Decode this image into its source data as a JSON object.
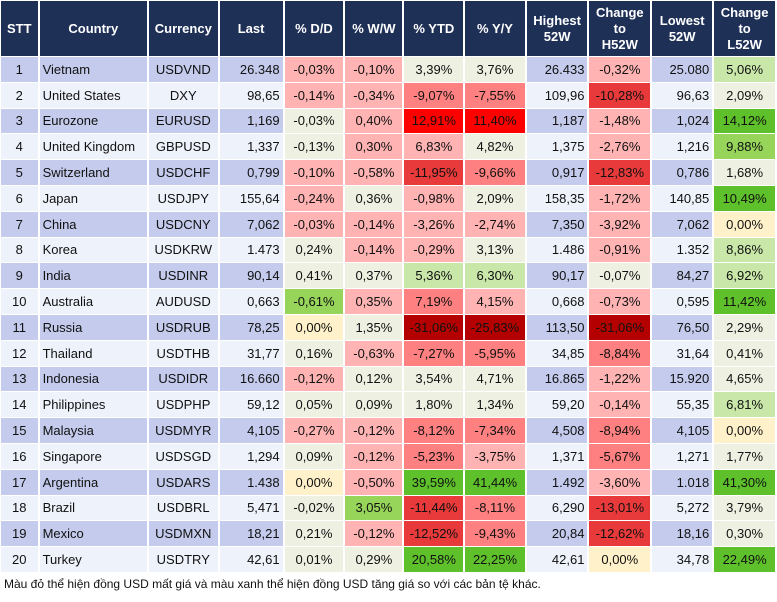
{
  "headers": [
    "STT",
    "Country",
    "Currency",
    "Last",
    "% D/D",
    "% W/W",
    "% YTD",
    "% Y/Y",
    "Highest 52W",
    "Change to H52W",
    "Lowest 52W",
    "Change to L52W"
  ],
  "colors": {
    "header": "#1f3057",
    "odd_row": "#c4cbec",
    "even_row": "#eef2fb",
    "neutral": "#eef0e2",
    "zero": "#fff1c9",
    "red_light": "#ffb3b3",
    "red_mid": "#ff8080",
    "red_strong": "#e83a3a",
    "red_bright": "#ff0000",
    "red_dark": "#b40000",
    "green_light": "#c9e7a9",
    "green_mid": "#96d45a",
    "green_strong": "#5ec02a"
  },
  "rows": [
    {
      "stt": "1",
      "country": "Vietnam",
      "currency": "USDVND",
      "last": "26.348",
      "dd": [
        "-0,03%",
        "r1"
      ],
      "ww": [
        "-0,10%",
        "r1"
      ],
      "ytd": [
        "3,39%",
        "n"
      ],
      "yy": [
        "3,76%",
        "n"
      ],
      "high": "26.433",
      "chh": [
        "-0,32%",
        "r1"
      ],
      "low": "25.080",
      "chl": [
        "5,06%",
        "g1"
      ]
    },
    {
      "stt": "2",
      "country": "United States",
      "currency": "DXY",
      "last": "98,65",
      "dd": [
        "-0,14%",
        "r1"
      ],
      "ww": [
        "-0,34%",
        "r1"
      ],
      "ytd": [
        "-9,07%",
        "r2"
      ],
      "yy": [
        "-7,55%",
        "r2"
      ],
      "high": "109,96",
      "chh": [
        "-10,28%",
        "r3"
      ],
      "low": "96,63",
      "chl": [
        "2,09%",
        "n"
      ]
    },
    {
      "stt": "3",
      "country": "Eurozone",
      "currency": "EURUSD",
      "last": "1,169",
      "dd": [
        "-0,03%",
        "n"
      ],
      "ww": [
        "0,40%",
        "r1"
      ],
      "ytd": [
        "12,91%",
        "r4"
      ],
      "yy": [
        "11,40%",
        "r4"
      ],
      "high": "1,187",
      "chh": [
        "-1,48%",
        "r1"
      ],
      "low": "1,024",
      "chl": [
        "14,12%",
        "g3"
      ]
    },
    {
      "stt": "4",
      "country": "United Kingdom",
      "currency": "GBPUSD",
      "last": "1,337",
      "dd": [
        "-0,13%",
        "n"
      ],
      "ww": [
        "0,30%",
        "r1"
      ],
      "ytd": [
        "6,83%",
        "r1"
      ],
      "yy": [
        "4,82%",
        "n"
      ],
      "high": "1,375",
      "chh": [
        "-2,76%",
        "r1"
      ],
      "low": "1,216",
      "chl": [
        "9,88%",
        "g2"
      ]
    },
    {
      "stt": "5",
      "country": "Switzerland",
      "currency": "USDCHF",
      "last": "0,799",
      "dd": [
        "-0,10%",
        "r1"
      ],
      "ww": [
        "-0,58%",
        "r1"
      ],
      "ytd": [
        "-11,95%",
        "r3"
      ],
      "yy": [
        "-9,66%",
        "r2"
      ],
      "high": "0,917",
      "chh": [
        "-12,83%",
        "r3"
      ],
      "low": "0,786",
      "chl": [
        "1,68%",
        "n"
      ]
    },
    {
      "stt": "6",
      "country": "Japan",
      "currency": "USDJPY",
      "last": "155,64",
      "dd": [
        "-0,24%",
        "r1"
      ],
      "ww": [
        "0,36%",
        "n"
      ],
      "ytd": [
        "-0,98%",
        "r1"
      ],
      "yy": [
        "2,09%",
        "n"
      ],
      "high": "158,35",
      "chh": [
        "-1,72%",
        "r1"
      ],
      "low": "140,85",
      "chl": [
        "10,49%",
        "g3"
      ]
    },
    {
      "stt": "7",
      "country": "China",
      "currency": "USDCNY",
      "last": "7,062",
      "dd": [
        "-0,03%",
        "r1"
      ],
      "ww": [
        "-0,14%",
        "r1"
      ],
      "ytd": [
        "-3,26%",
        "r1"
      ],
      "yy": [
        "-2,74%",
        "r1"
      ],
      "high": "7,350",
      "chh": [
        "-3,92%",
        "r1"
      ],
      "low": "7,062",
      "chl": [
        "0,00%",
        "z"
      ]
    },
    {
      "stt": "8",
      "country": "Korea",
      "currency": "USDKRW",
      "last": "1.473",
      "dd": [
        "0,24%",
        "n"
      ],
      "ww": [
        "-0,14%",
        "r1"
      ],
      "ytd": [
        "-0,29%",
        "r1"
      ],
      "yy": [
        "3,13%",
        "n"
      ],
      "high": "1.486",
      "chh": [
        "-0,91%",
        "r1"
      ],
      "low": "1.352",
      "chl": [
        "8,86%",
        "g1"
      ]
    },
    {
      "stt": "9",
      "country": "India",
      "currency": "USDINR",
      "last": "90,14",
      "dd": [
        "0,41%",
        "n"
      ],
      "ww": [
        "0,37%",
        "n"
      ],
      "ytd": [
        "5,36%",
        "g1"
      ],
      "yy": [
        "6,30%",
        "g1"
      ],
      "high": "90,17",
      "chh": [
        "-0,07%",
        "n"
      ],
      "low": "84,27",
      "chl": [
        "6,92%",
        "g1"
      ]
    },
    {
      "stt": "10",
      "country": "Australia",
      "currency": "AUDUSD",
      "last": "0,663",
      "dd": [
        "-0,61%",
        "g2"
      ],
      "ww": [
        "0,35%",
        "r1"
      ],
      "ytd": [
        "7,19%",
        "r2"
      ],
      "yy": [
        "4,15%",
        "r1"
      ],
      "high": "0,668",
      "chh": [
        "-0,73%",
        "r1"
      ],
      "low": "0,595",
      "chl": [
        "11,42%",
        "g3"
      ]
    },
    {
      "stt": "11",
      "country": "Russia",
      "currency": "USDRUB",
      "last": "78,25",
      "dd": [
        "0,00%",
        "z"
      ],
      "ww": [
        "1,35%",
        "n"
      ],
      "ytd": [
        "-31,06%",
        "r5"
      ],
      "yy": [
        "-25,83%",
        "r5"
      ],
      "high": "113,50",
      "chh": [
        "-31,06%",
        "r5"
      ],
      "low": "76,50",
      "chl": [
        "2,29%",
        "n"
      ]
    },
    {
      "stt": "12",
      "country": "Thailand",
      "currency": "USDTHB",
      "last": "31,77",
      "dd": [
        "0,16%",
        "n"
      ],
      "ww": [
        "-0,63%",
        "r1"
      ],
      "ytd": [
        "-7,27%",
        "r2"
      ],
      "yy": [
        "-5,95%",
        "r2"
      ],
      "high": "34,85",
      "chh": [
        "-8,84%",
        "r2"
      ],
      "low": "31,64",
      "chl": [
        "0,41%",
        "n"
      ]
    },
    {
      "stt": "13",
      "country": "Indonesia",
      "currency": "USDIDR",
      "last": "16.660",
      "dd": [
        "-0,12%",
        "r1"
      ],
      "ww": [
        "0,12%",
        "n"
      ],
      "ytd": [
        "3,54%",
        "n"
      ],
      "yy": [
        "4,71%",
        "n"
      ],
      "high": "16.865",
      "chh": [
        "-1,22%",
        "r1"
      ],
      "low": "15.920",
      "chl": [
        "4,65%",
        "n"
      ]
    },
    {
      "stt": "14",
      "country": "Philippines",
      "currency": "USDPHP",
      "last": "59,12",
      "dd": [
        "0,05%",
        "n"
      ],
      "ww": [
        "0,09%",
        "n"
      ],
      "ytd": [
        "1,80%",
        "n"
      ],
      "yy": [
        "1,34%",
        "n"
      ],
      "high": "59,20",
      "chh": [
        "-0,14%",
        "r1"
      ],
      "low": "55,35",
      "chl": [
        "6,81%",
        "g1"
      ]
    },
    {
      "stt": "15",
      "country": "Malaysia",
      "currency": "USDMYR",
      "last": "4,105",
      "dd": [
        "-0,27%",
        "r1"
      ],
      "ww": [
        "-0,12%",
        "r1"
      ],
      "ytd": [
        "-8,12%",
        "r2"
      ],
      "yy": [
        "-7,34%",
        "r2"
      ],
      "high": "4,508",
      "chh": [
        "-8,94%",
        "r2"
      ],
      "low": "4,105",
      "chl": [
        "0,00%",
        "z"
      ]
    },
    {
      "stt": "16",
      "country": "Singapore",
      "currency": "USDSGD",
      "last": "1,294",
      "dd": [
        "0,09%",
        "n"
      ],
      "ww": [
        "-0,12%",
        "r1"
      ],
      "ytd": [
        "-5,23%",
        "r2"
      ],
      "yy": [
        "-3,75%",
        "r1"
      ],
      "high": "1,371",
      "chh": [
        "-5,67%",
        "r2"
      ],
      "low": "1,271",
      "chl": [
        "1,77%",
        "n"
      ]
    },
    {
      "stt": "17",
      "country": "Argentina",
      "currency": "USDARS",
      "last": "1.438",
      "dd": [
        "0,00%",
        "z"
      ],
      "ww": [
        "-0,50%",
        "r1"
      ],
      "ytd": [
        "39,59%",
        "g3"
      ],
      "yy": [
        "41,44%",
        "g3"
      ],
      "high": "1.492",
      "chh": [
        "-3,60%",
        "r1"
      ],
      "low": "1.018",
      "chl": [
        "41,30%",
        "g3"
      ]
    },
    {
      "stt": "18",
      "country": "Brazil",
      "currency": "USDBRL",
      "last": "5,471",
      "dd": [
        "-0,02%",
        "n"
      ],
      "ww": [
        "3,05%",
        "g2"
      ],
      "ytd": [
        "-11,44%",
        "r3"
      ],
      "yy": [
        "-8,11%",
        "r2"
      ],
      "high": "6,290",
      "chh": [
        "-13,01%",
        "r3"
      ],
      "low": "5,272",
      "chl": [
        "3,79%",
        "n"
      ]
    },
    {
      "stt": "19",
      "country": "Mexico",
      "currency": "USDMXN",
      "last": "18,21",
      "dd": [
        "0,21%",
        "n"
      ],
      "ww": [
        "-0,12%",
        "r1"
      ],
      "ytd": [
        "-12,52%",
        "r3"
      ],
      "yy": [
        "-9,43%",
        "r2"
      ],
      "high": "20,84",
      "chh": [
        "-12,62%",
        "r3"
      ],
      "low": "18,16",
      "chl": [
        "0,30%",
        "n"
      ]
    },
    {
      "stt": "20",
      "country": "Turkey",
      "currency": "USDTRY",
      "last": "42,61",
      "dd": [
        "0,01%",
        "n"
      ],
      "ww": [
        "0,29%",
        "n"
      ],
      "ytd": [
        "20,58%",
        "g3"
      ],
      "yy": [
        "22,25%",
        "g3"
      ],
      "high": "42,61",
      "chh": [
        "0,00%",
        "z"
      ],
      "low": "34,78",
      "chl": [
        "22,49%",
        "g3"
      ]
    }
  ],
  "footer": "Màu đỏ thể hiện đồng USD mất giá và màu xanh thể hiện đồng USD tăng giá so với các bản tệ khác."
}
